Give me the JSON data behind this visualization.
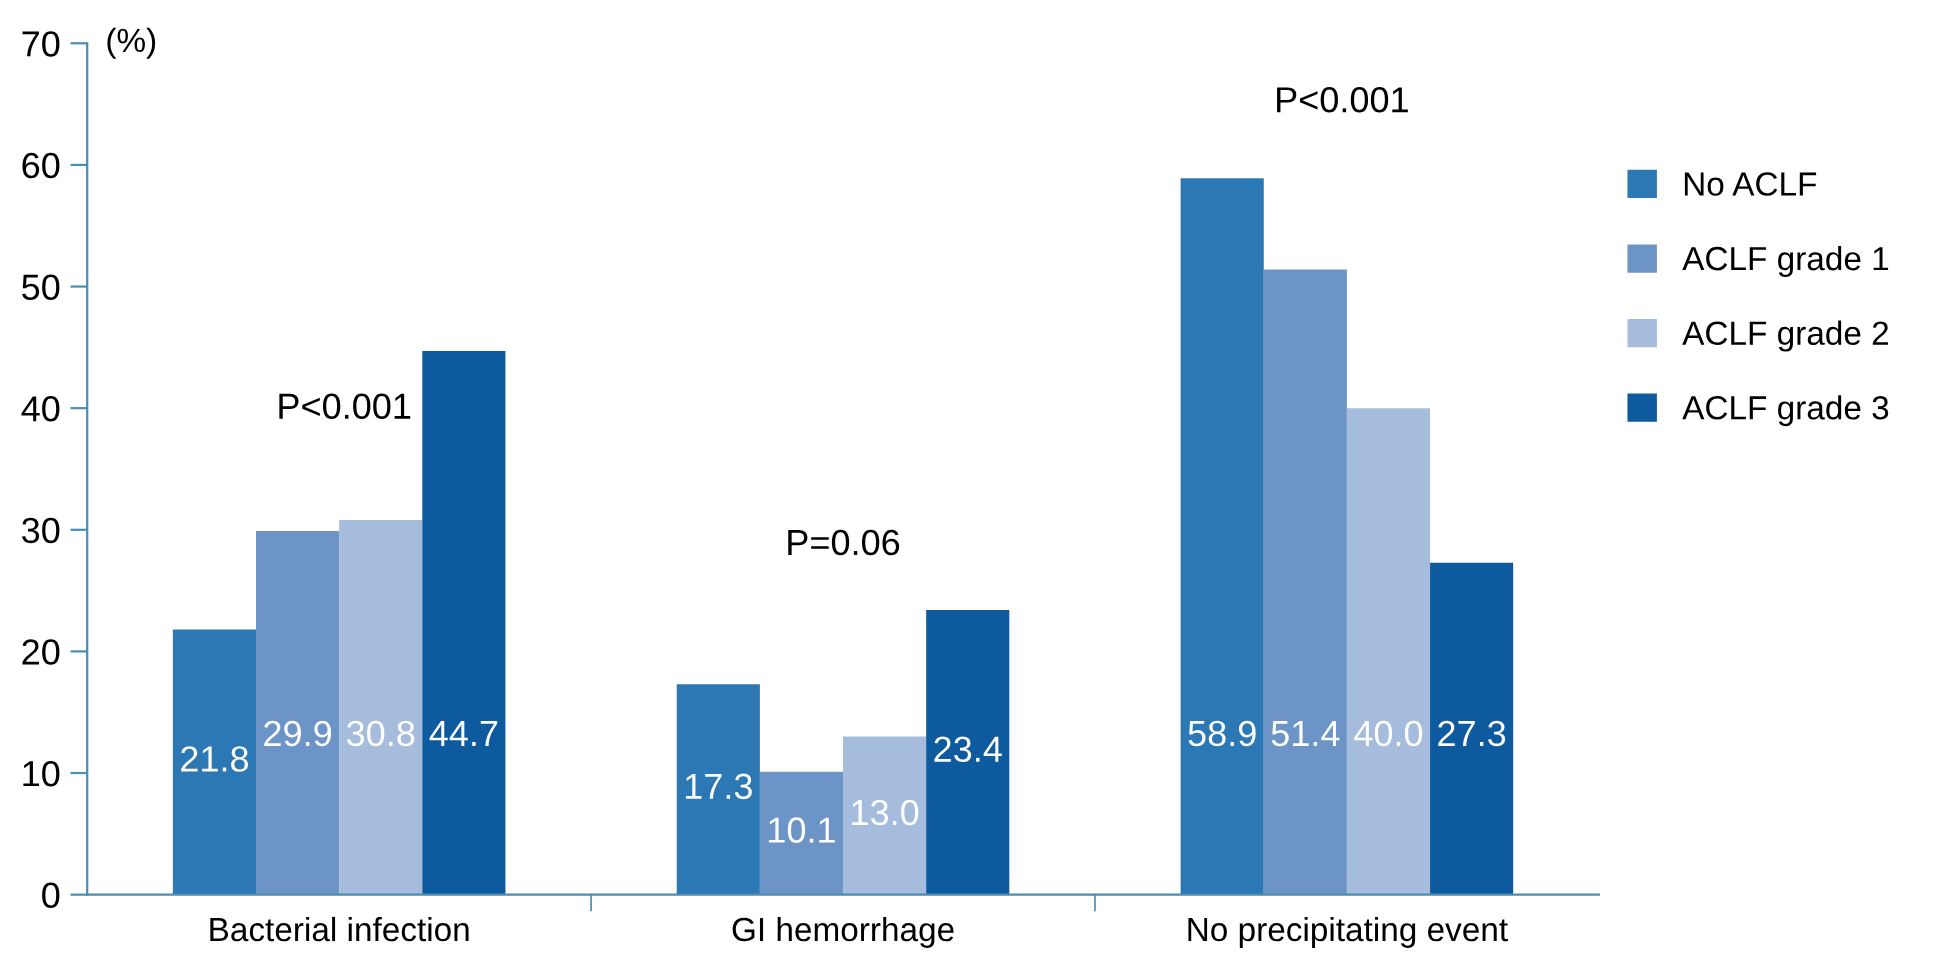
{
  "chart_data": {
    "type": "bar",
    "ylabel": "(%)",
    "categories": [
      "Bacterial infection",
      "GI hemorrhage",
      "No precipitating event"
    ],
    "series": [
      {
        "name": "No ACLF",
        "color": "#2b78b4",
        "values": [
          21.8,
          17.3,
          58.9
        ],
        "value_labels": [
          "21.8",
          "17.3",
          "58.9"
        ]
      },
      {
        "name": "ACLF grade 1",
        "color": "#6c94c6",
        "values": [
          29.9,
          10.1,
          51.4
        ],
        "value_labels": [
          "29.9",
          "10.1",
          "51.4"
        ]
      },
      {
        "name": "ACLF grade 2",
        "color": "#a6bcdc",
        "values": [
          30.8,
          13.0,
          40.0
        ],
        "value_labels": [
          "30.8",
          "13.0",
          "40.0"
        ]
      },
      {
        "name": "ACLF grade 3",
        "color": "#0d5a9e",
        "values": [
          44.7,
          23.4,
          27.3
        ],
        "value_labels": [
          "44.7",
          "23.4",
          "27.3"
        ]
      }
    ],
    "ylim": [
      0,
      70
    ],
    "yticks": [
      0,
      10,
      20,
      30,
      40,
      50,
      60,
      70
    ],
    "grid": false,
    "legend": "right",
    "annotations": [
      "P<0.001",
      "P=0.06",
      "P<0.001"
    ]
  }
}
